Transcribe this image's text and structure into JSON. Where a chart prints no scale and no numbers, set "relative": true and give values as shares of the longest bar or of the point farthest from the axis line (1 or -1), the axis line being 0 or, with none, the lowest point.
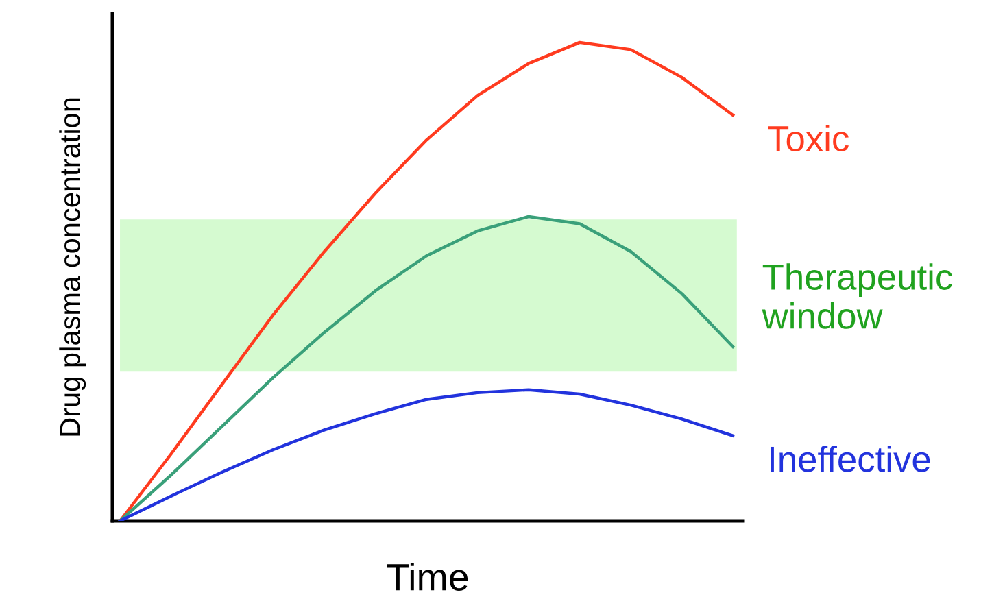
{
  "chart_data": {
    "type": "line",
    "relative": true,
    "xlabel": "Time",
    "ylabel": "Drug plasma concentration",
    "categories": [
      null,
      null,
      null,
      null,
      null,
      null,
      null,
      null,
      null,
      null,
      null,
      null,
      null
    ],
    "series": [
      {
        "name": "Toxic",
        "color": "#ff3b1f",
        "values": [
          0,
          0.14,
          0.286,
          0.431,
          0.563,
          0.685,
          0.796,
          0.889,
          0.956,
          1,
          0.985,
          0.927,
          0.848
        ]
      },
      {
        "color": "#3aa07a",
        "values": [
          0,
          0.096,
          0.198,
          0.3,
          0.394,
          0.481,
          0.554,
          0.606,
          0.636,
          0.621,
          0.563,
          0.475,
          0.364
        ]
      },
      {
        "name": "Ineffective",
        "color": "#2233dd",
        "values": [
          0,
          0.052,
          0.102,
          0.149,
          0.19,
          0.224,
          0.254,
          0.268,
          0.274,
          0.265,
          0.242,
          0.213,
          0.178
        ]
      }
    ],
    "bands": [
      {
        "axis": "y",
        "from": 0.312,
        "to": 0.63,
        "label": "Therapeutic window",
        "color": "#d5fad0"
      }
    ],
    "marker": "none",
    "line_style": "solid"
  }
}
